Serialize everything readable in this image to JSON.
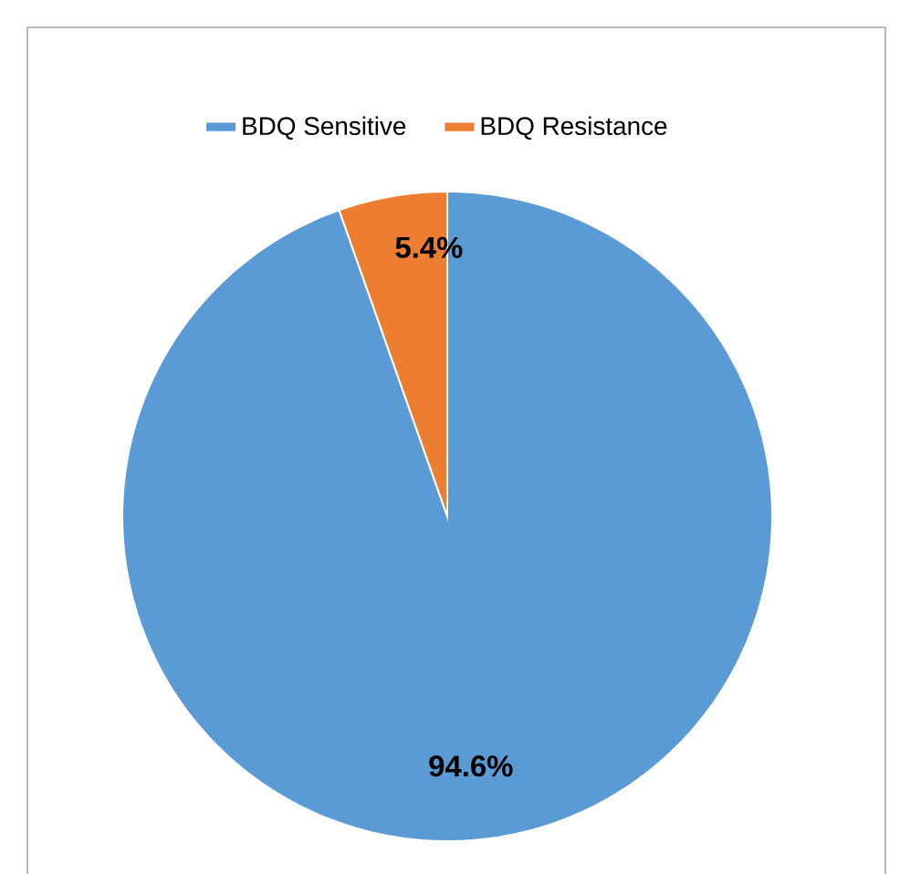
{
  "chart_data": {
    "type": "pie",
    "categories": [
      "BDQ Sensitive",
      "BDQ Resistance"
    ],
    "values": [
      94.6,
      5.4
    ],
    "colors": [
      "#5b9bd5",
      "#ed7d31"
    ],
    "value_labels": [
      "94.6%",
      "5.4%"
    ],
    "legend": "top"
  }
}
